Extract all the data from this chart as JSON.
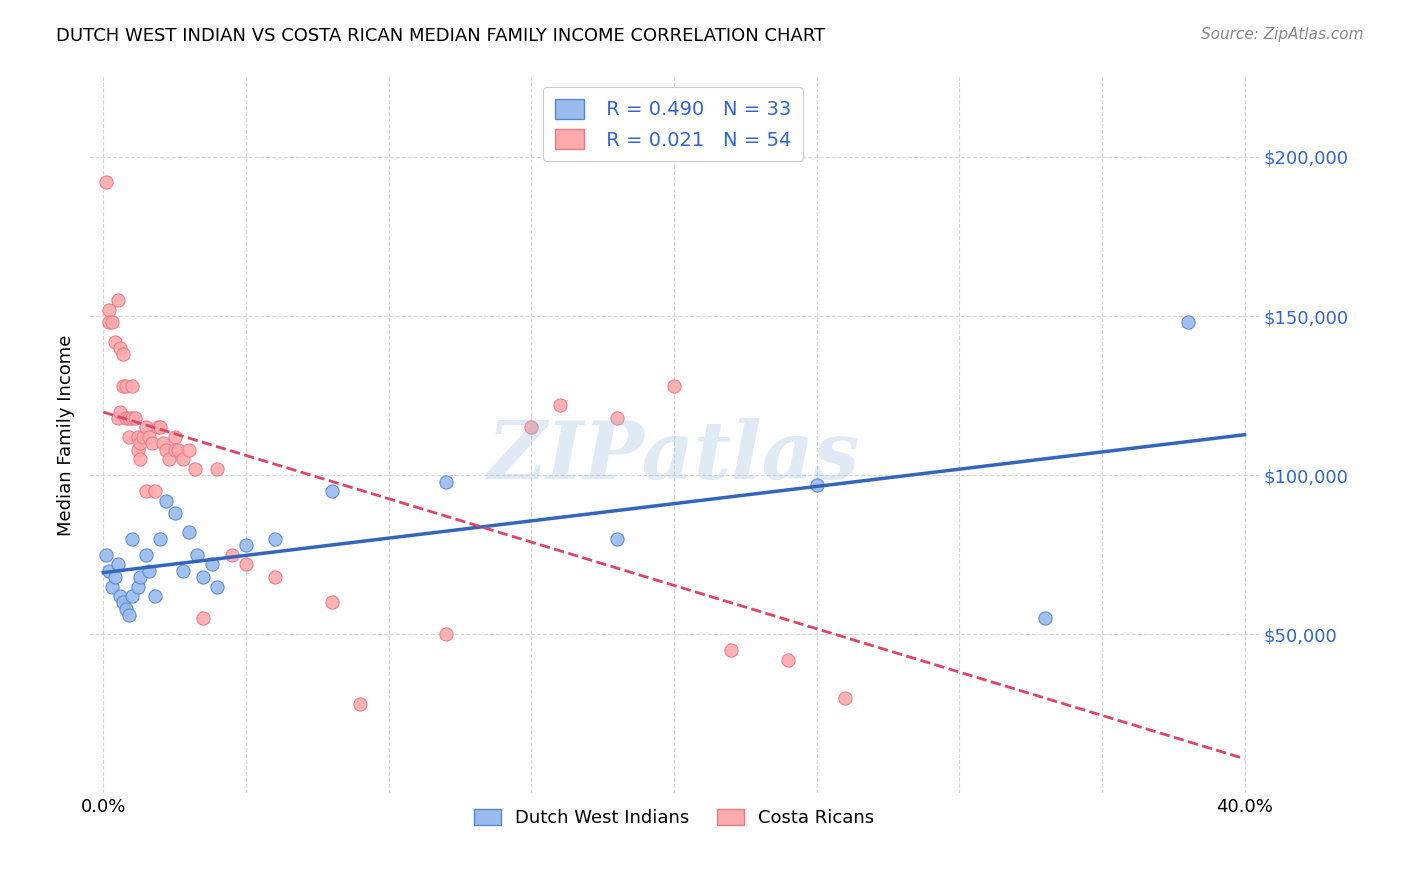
{
  "title": "DUTCH WEST INDIAN VS COSTA RICAN MEDIAN FAMILY INCOME CORRELATION CHART",
  "source": "Source: ZipAtlas.com",
  "ylabel": "Median Family Income",
  "y_ticks": [
    50000,
    100000,
    150000,
    200000
  ],
  "y_tick_labels": [
    "$50,000",
    "$100,000",
    "$150,000",
    "$200,000"
  ],
  "x_ticks": [
    0.0,
    0.05,
    0.1,
    0.15,
    0.2,
    0.25,
    0.3,
    0.35,
    0.4
  ],
  "xlim": [
    -0.005,
    0.405
  ],
  "ylim": [
    0,
    225000
  ],
  "legend_label1": "Dutch West Indians",
  "legend_label2": "Costa Ricans",
  "R1": 0.49,
  "N1": 33,
  "R2": 0.021,
  "N2": 54,
  "color_blue": "#99BBEE",
  "color_blue_edge": "#5588CC",
  "color_pink": "#FFAAAA",
  "color_pink_edge": "#EE7788",
  "color_line_blue": "#3366BB",
  "color_line_pink": "#DD4466",
  "color_text_blue": "#3366CC",
  "watermark": "ZIPatlas",
  "blue_scatter_x": [
    0.001,
    0.002,
    0.003,
    0.004,
    0.005,
    0.006,
    0.007,
    0.008,
    0.009,
    0.01,
    0.01,
    0.012,
    0.013,
    0.015,
    0.016,
    0.018,
    0.02,
    0.022,
    0.025,
    0.028,
    0.03,
    0.033,
    0.035,
    0.038,
    0.04,
    0.05,
    0.06,
    0.08,
    0.12,
    0.18,
    0.25,
    0.33,
    0.38
  ],
  "blue_scatter_y": [
    75000,
    70000,
    65000,
    68000,
    72000,
    62000,
    60000,
    58000,
    56000,
    62000,
    80000,
    65000,
    68000,
    75000,
    70000,
    62000,
    80000,
    92000,
    88000,
    70000,
    82000,
    75000,
    68000,
    72000,
    65000,
    78000,
    80000,
    95000,
    98000,
    80000,
    97000,
    55000,
    148000
  ],
  "pink_scatter_x": [
    0.001,
    0.002,
    0.002,
    0.003,
    0.004,
    0.005,
    0.005,
    0.006,
    0.006,
    0.007,
    0.007,
    0.008,
    0.008,
    0.009,
    0.009,
    0.01,
    0.01,
    0.011,
    0.012,
    0.012,
    0.013,
    0.013,
    0.014,
    0.015,
    0.015,
    0.016,
    0.017,
    0.018,
    0.019,
    0.02,
    0.021,
    0.022,
    0.023,
    0.025,
    0.025,
    0.026,
    0.028,
    0.03,
    0.032,
    0.035,
    0.04,
    0.045,
    0.05,
    0.06,
    0.08,
    0.09,
    0.12,
    0.15,
    0.16,
    0.18,
    0.2,
    0.22,
    0.24,
    0.26
  ],
  "pink_scatter_y": [
    192000,
    152000,
    148000,
    148000,
    142000,
    155000,
    118000,
    140000,
    120000,
    138000,
    128000,
    128000,
    118000,
    118000,
    112000,
    128000,
    118000,
    118000,
    108000,
    112000,
    110000,
    105000,
    112000,
    115000,
    95000,
    112000,
    110000,
    95000,
    115000,
    115000,
    110000,
    108000,
    105000,
    112000,
    108000,
    108000,
    105000,
    108000,
    102000,
    55000,
    102000,
    75000,
    72000,
    68000,
    60000,
    28000,
    50000,
    115000,
    122000,
    118000,
    128000,
    45000,
    42000,
    30000
  ]
}
